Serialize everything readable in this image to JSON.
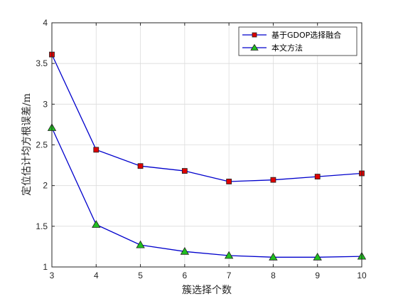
{
  "chart_data": {
    "type": "line",
    "title": "",
    "xlabel": "簇选择个数",
    "ylabel": "定位估计均方根误差/m",
    "x": [
      3,
      4,
      5,
      6,
      7,
      8,
      9,
      10
    ],
    "xlim": [
      3,
      10
    ],
    "ylim": [
      1,
      4
    ],
    "xticks": [
      "3",
      "4",
      "5",
      "6",
      "7",
      "8",
      "9",
      "10"
    ],
    "yticks": [
      "1",
      "1.5",
      "2",
      "2.5",
      "3",
      "3.5",
      "4"
    ],
    "grid": true,
    "legend_position": "top-right",
    "series": [
      {
        "name": "基于GDOP选择融合",
        "values": [
          3.61,
          2.44,
          2.24,
          2.18,
          2.05,
          2.07,
          2.11,
          2.15
        ],
        "line_color": "#0000cc",
        "marker": "square",
        "marker_fill": "#e00000"
      },
      {
        "name": "本文方法",
        "values": [
          2.71,
          1.52,
          1.27,
          1.19,
          1.14,
          1.12,
          1.12,
          1.13
        ],
        "line_color": "#0000cc",
        "marker": "triangle",
        "marker_fill": "#20c020"
      }
    ]
  }
}
